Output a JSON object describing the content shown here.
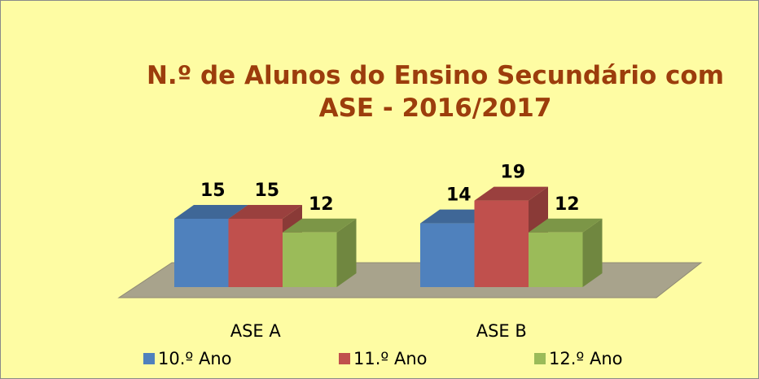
{
  "chart_data": {
    "type": "bar3d",
    "title": "N.º de Alunos do Ensino Secundário com ASE - 2016/2017",
    "categories": [
      "ASE A",
      "ASE B"
    ],
    "series": [
      {
        "name": "10.º Ano",
        "color": "#4f81bd",
        "values": [
          15,
          14
        ]
      },
      {
        "name": "11.º Ano",
        "color": "#c0504d",
        "values": [
          15,
          19
        ]
      },
      {
        "name": "12.º Ano",
        "color": "#9bbb59",
        "values": [
          12,
          12
        ]
      }
    ],
    "legend": "bottom"
  }
}
